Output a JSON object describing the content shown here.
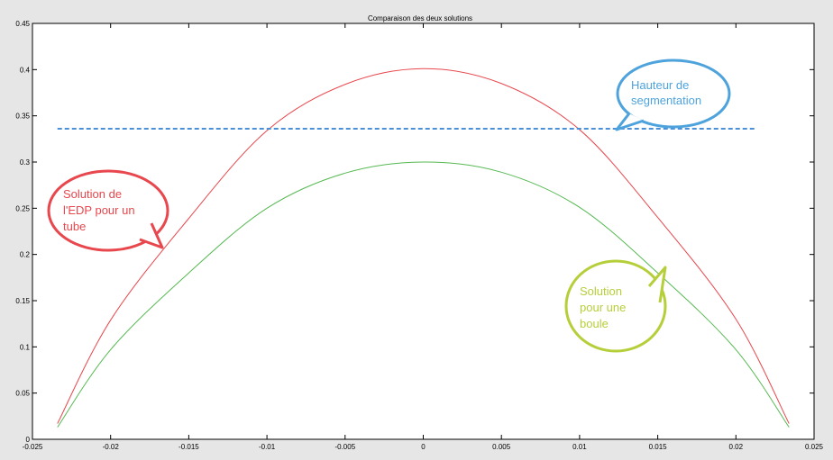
{
  "chart_data": {
    "type": "line",
    "title": "Comparaison des deux solutions",
    "xlim": [
      -0.025,
      0.025
    ],
    "ylim": [
      0,
      0.45
    ],
    "xticks": [
      "-0.025",
      "-0.02",
      "-0.015",
      "-0.01",
      "-0.005",
      "0",
      "0.005",
      "0.01",
      "0.015",
      "0.02",
      "0.025"
    ],
    "xtick_values": [
      -0.025,
      -0.02,
      -0.015,
      -0.01,
      -0.005,
      0,
      0.005,
      0.01,
      0.015,
      0.02,
      0.025
    ],
    "yticks": [
      "0",
      "0.05",
      "0.1",
      "0.15",
      "0.2",
      "0.25",
      "0.3",
      "0.35",
      "0.4",
      "0.45"
    ],
    "ytick_values": [
      0,
      0.05,
      0.1,
      0.15,
      0.2,
      0.25,
      0.3,
      0.35,
      0.4,
      0.45
    ],
    "grid": false,
    "series": [
      {
        "color": "#e8474d",
        "x": [
          -0.0234,
          -0.02,
          -0.015,
          -0.01,
          -0.005,
          0,
          0.005,
          0.01,
          0.015,
          0.02,
          0.0234
        ],
        "y": [
          0.017,
          0.129,
          0.239,
          0.334,
          0.384,
          0.401,
          0.385,
          0.335,
          0.24,
          0.13,
          0.017
        ]
      },
      {
        "color": "#56b952",
        "x": [
          -0.0234,
          -0.02,
          -0.015,
          -0.01,
          -0.005,
          0,
          0.005,
          0.01,
          0.015,
          0.02,
          0.0234
        ],
        "y": [
          0.013,
          0.097,
          0.18,
          0.25,
          0.288,
          0.3,
          0.289,
          0.251,
          0.18,
          0.097,
          0.013
        ]
      },
      {
        "color": "#4a90d9",
        "style": "dashed",
        "x": [
          -0.0234,
          0.0212
        ],
        "y": [
          0.336,
          0.336
        ]
      }
    ],
    "annotations": [
      {
        "text_lines": [
          "Hauteur de",
          "segmentation"
        ],
        "color": "#4ea3dc",
        "text_color": "#4ea3dc"
      },
      {
        "text_lines": [
          "Solution de",
          "l'EDP pour un",
          "tube"
        ],
        "color": "#e8474d",
        "text_color": "#e8474d"
      },
      {
        "text_lines": [
          "Solution",
          "pour une",
          "boule"
        ],
        "color": "#b5cf3a",
        "text_color": "#b5cf3a"
      }
    ]
  }
}
